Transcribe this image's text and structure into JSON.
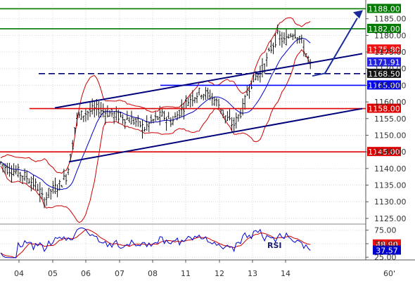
{
  "chart_data": {
    "type": "candlestick",
    "instrument": "",
    "timeframe_label": "60'",
    "x_day_labels": [
      "04",
      "05",
      "06",
      "07",
      "08",
      "11",
      "12",
      "13",
      "14"
    ],
    "y_ticks_main": [
      1125.0,
      1130.0,
      1135.0,
      1140.0,
      1145.0,
      1150.0,
      1155.0,
      1160.0,
      1165.0,
      1170.0,
      1175.0,
      1180.0,
      1185.0
    ],
    "y_ticks_main_labels": [
      "1125.00",
      "1130.00",
      "1135.00",
      "1140.00",
      "1145.00",
      "1150.00",
      "1155.00",
      "1160.00",
      "1165.00",
      "1170.00",
      "1175.00",
      "1180.00",
      "1185.00"
    ],
    "ylim_main": [
      1123.5,
      1190.0
    ],
    "rsi_ticks": [
      25.0,
      50.0,
      75.0
    ],
    "rsi_tick_labels": [
      "25.00",
      "50.00",
      "75.00"
    ],
    "rsi_label": "RSI",
    "rsi_values": {
      "line1": 37.57,
      "line2": 48.9
    },
    "price_close": 1168.5,
    "levels": [
      {
        "value": 1188.0,
        "label": "1188.00",
        "color": "#007a00",
        "style": "solid",
        "tag_bg": "#007a00",
        "tag_fg": "#ffffff"
      },
      {
        "value": 1182.0,
        "label": "1182.00",
        "color": "#007a00",
        "style": "solid",
        "tag_bg": "#007a00",
        "tag_fg": "#ffffff"
      },
      {
        "value": 1175.8,
        "label": "1175.80",
        "color": "#cc0000",
        "style": "none",
        "tag_bg": "#ee1111",
        "tag_fg": "#ffffff"
      },
      {
        "value": 1171.91,
        "label": "1171.91",
        "color": "#0000cc",
        "style": "none",
        "tag_bg": "#2222dd",
        "tag_fg": "#ffffff"
      },
      {
        "value": 1168.5,
        "label": "1168.50",
        "color": "#000000",
        "style": "none",
        "tag_bg": "#111111",
        "tag_fg": "#ffffff"
      },
      {
        "value": 1165.0,
        "label": "1165.00",
        "color": "#0000ff",
        "style": "solid",
        "tag_bg": "#0000ee",
        "tag_fg": "#ffffff"
      },
      {
        "value": 1158.0,
        "label": "1158.00",
        "color": "#dd0000",
        "style": "solid",
        "tag_bg": "#dd0000",
        "tag_fg": "#ffffff"
      },
      {
        "value": 1145.0,
        "label": "1145.00",
        "color": "#dd0000",
        "style": "solid",
        "tag_bg": "#dd0000",
        "tag_fg": "#ffffff"
      }
    ],
    "rsi_tags": [
      {
        "value": 48.9,
        "label": "48.90",
        "tag_bg": "#ee1111",
        "tag_fg": "#ffffff"
      },
      {
        "value": 37.57,
        "label": "37.57",
        "tag_bg": "#0000cc",
        "tag_fg": "#ffffff"
      }
    ],
    "colors": {
      "candle": "#111111",
      "bollinger": "#cc0000",
      "moving_average": "#0000cc",
      "trendline": "#00007a",
      "dashed_level": "#00007a",
      "arrow": "#1a2a9a",
      "rsi_line1": "#0000cc",
      "rsi_line2": "#cc0000",
      "grid": "#d8d8d8"
    },
    "grid": true
  }
}
